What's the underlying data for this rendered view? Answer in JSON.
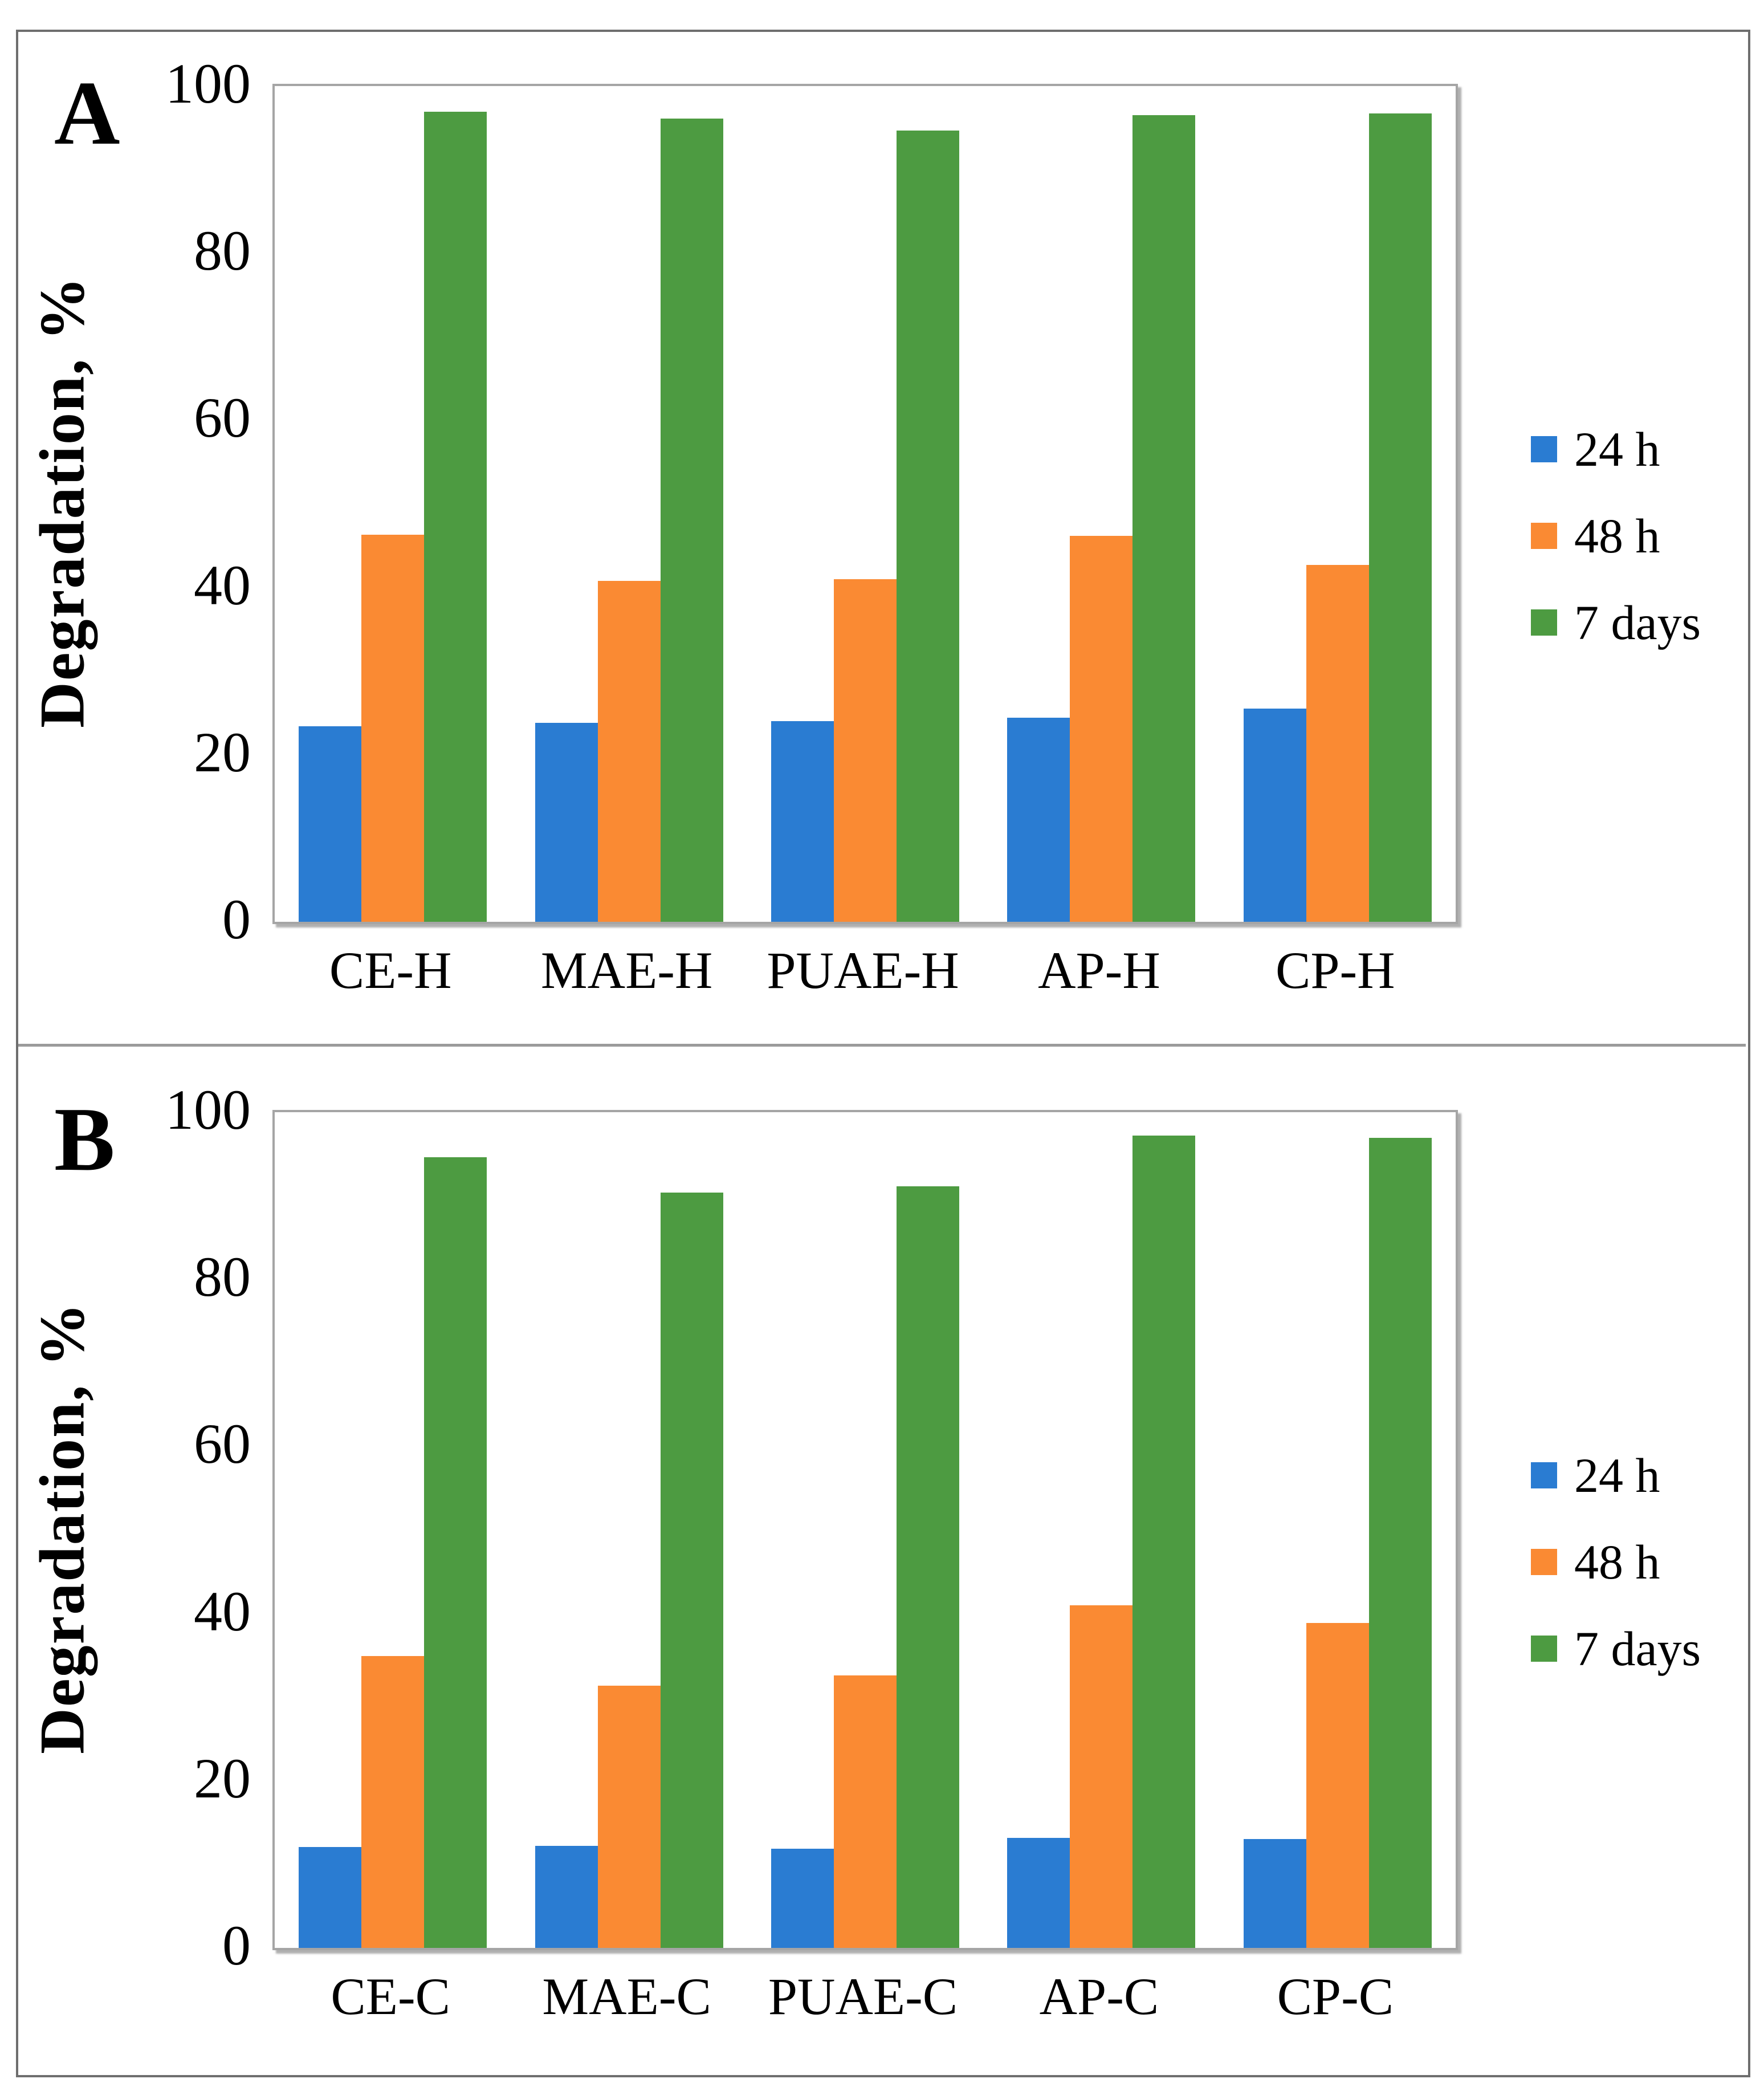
{
  "figure": {
    "outer_border_color": "#6e6e6e",
    "panel_divider_color": "#9b9b9b",
    "plot_border_color": "#a5a5a5",
    "background_color": "#ffffff"
  },
  "chart_data": [
    {
      "type": "bar",
      "panel": "A",
      "title": "",
      "xlabel": "",
      "ylabel": "Degradation, %",
      "ylim": [
        0,
        100
      ],
      "yticks": [
        0,
        20,
        40,
        60,
        80,
        100
      ],
      "grid": false,
      "legend_position": "right",
      "categories": [
        "CE-H",
        "MAE-H",
        "PUAE-H",
        "AP-H",
        "CP-H"
      ],
      "series": [
        {
          "name": "24 h",
          "color": "#2A7CD2",
          "values": [
            23.4,
            23.8,
            24.0,
            24.4,
            25.5
          ]
        },
        {
          "name": "48 h",
          "color": "#FA8A33",
          "values": [
            46.3,
            40.8,
            41.0,
            46.2,
            42.7
          ]
        },
        {
          "name": "7 days",
          "color": "#4D9B41",
          "values": [
            96.9,
            96.1,
            94.7,
            96.5,
            96.7
          ]
        }
      ]
    },
    {
      "type": "bar",
      "panel": "B",
      "title": "",
      "xlabel": "",
      "ylabel": "Degradation, %",
      "ylim": [
        0,
        100
      ],
      "yticks": [
        0,
        20,
        40,
        60,
        80,
        100
      ],
      "grid": false,
      "legend_position": "right",
      "categories": [
        "CE-C",
        "MAE-C",
        "PUAE-C",
        "AP-C",
        "CP-C"
      ],
      "series": [
        {
          "name": "24 h",
          "color": "#2A7CD2",
          "values": [
            12.1,
            12.2,
            11.9,
            13.2,
            13.0
          ]
        },
        {
          "name": "48 h",
          "color": "#FA8A33",
          "values": [
            34.9,
            31.4,
            32.6,
            41.0,
            38.9
          ]
        },
        {
          "name": "7 days",
          "color": "#4D9B41",
          "values": [
            94.6,
            90.4,
            91.1,
            97.2,
            96.9
          ]
        }
      ]
    }
  ]
}
